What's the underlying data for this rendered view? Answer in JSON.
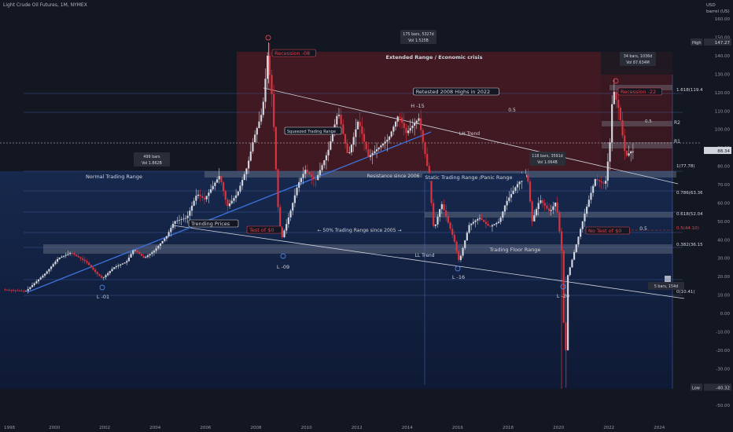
{
  "header": {
    "symbol": "Light Crude Oil Futures, 1M, NYMEX"
  },
  "currency": {
    "code": "USD",
    "unit": "barrel (US)"
  },
  "chart_data": {
    "type": "candlestick",
    "title": "Light Crude Oil Futures, 1M, NYMEX",
    "x_range": [
      1998.0,
      2025.0
    ],
    "y_range": [
      -50,
      160
    ],
    "log_scale": false,
    "grid": false,
    "x_ticks": [
      "1998",
      "2000",
      "2002",
      "2004",
      "2006",
      "2008",
      "2010",
      "2012",
      "2014",
      "2016",
      "2018",
      "2020",
      "2022",
      "2024"
    ],
    "y_ticks": [
      "160.00",
      "150.00",
      "140.00",
      "130.00",
      "120.00",
      "110.00",
      "100.00",
      "90.00",
      "80.00",
      "70.00",
      "60.00",
      "50.00",
      "40.00",
      "30.00",
      "20.00",
      "10.00",
      "0.00",
      "-10.00",
      "-20.00",
      "-30.00",
      "-40.00",
      "-50.00"
    ],
    "price_path": [
      [
        1998.0,
        13
      ],
      [
        1998.9,
        12
      ],
      [
        1999.3,
        17
      ],
      [
        1999.7,
        22
      ],
      [
        2000.2,
        30
      ],
      [
        2000.7,
        33
      ],
      [
        2001.3,
        28
      ],
      [
        2001.7,
        22
      ],
      [
        2001.95,
        19
      ],
      [
        2002.4,
        25
      ],
      [
        2002.9,
        28
      ],
      [
        2003.2,
        35
      ],
      [
        2003.6,
        30
      ],
      [
        2004.0,
        34
      ],
      [
        2004.5,
        42
      ],
      [
        2004.8,
        50
      ],
      [
        2005.3,
        52
      ],
      [
        2005.7,
        65
      ],
      [
        2006.0,
        62
      ],
      [
        2006.6,
        75
      ],
      [
        2006.9,
        58
      ],
      [
        2007.3,
        65
      ],
      [
        2007.7,
        80
      ],
      [
        2007.95,
        95
      ],
      [
        2008.3,
        110
      ],
      [
        2008.5,
        140
      ],
      [
        2008.7,
        115
      ],
      [
        2008.9,
        60
      ],
      [
        2009.05,
        40
      ],
      [
        2009.4,
        55
      ],
      [
        2009.7,
        70
      ],
      [
        2010.0,
        78
      ],
      [
        2010.4,
        72
      ],
      [
        2010.9,
        88
      ],
      [
        2011.3,
        110
      ],
      [
        2011.7,
        85
      ],
      [
        2012.1,
        105
      ],
      [
        2012.5,
        85
      ],
      [
        2012.9,
        90
      ],
      [
        2013.3,
        95
      ],
      [
        2013.7,
        108
      ],
      [
        2014.0,
        98
      ],
      [
        2014.5,
        106
      ],
      [
        2014.9,
        75
      ],
      [
        2015.1,
        45
      ],
      [
        2015.4,
        60
      ],
      [
        2015.9,
        40
      ],
      [
        2016.1,
        28
      ],
      [
        2016.5,
        48
      ],
      [
        2016.9,
        52
      ],
      [
        2017.3,
        47
      ],
      [
        2017.7,
        50
      ],
      [
        2017.95,
        60
      ],
      [
        2018.4,
        70
      ],
      [
        2018.8,
        76
      ],
      [
        2019.0,
        50
      ],
      [
        2019.3,
        62
      ],
      [
        2019.7,
        55
      ],
      [
        2019.95,
        61
      ],
      [
        2020.2,
        30
      ],
      [
        2020.3,
        -40
      ],
      [
        2020.4,
        20
      ],
      [
        2020.8,
        40
      ],
      [
        2021.1,
        55
      ],
      [
        2021.5,
        73
      ],
      [
        2021.9,
        70
      ],
      [
        2022.1,
        95
      ],
      [
        2022.2,
        123
      ],
      [
        2022.45,
        110
      ],
      [
        2022.7,
        85
      ],
      [
        2022.9,
        88
      ]
    ],
    "key_levels": [
      {
        "label": "High",
        "value": 147.27
      },
      {
        "label": "Low",
        "value": -40.32
      },
      {
        "label": "Last",
        "value": 88.34
      }
    ],
    "fib_levels": [
      {
        "label": "1.618(119.41)",
        "value": 119.41
      },
      {
        "label": "0.5",
        "value": 103.4
      },
      {
        "label": "1(77.78)",
        "value": 77.78
      },
      {
        "label": "0.786(63.36)",
        "value": 63.36
      },
      {
        "label": "0.618(52.04)",
        "value": 52.04
      },
      {
        "label": "0.5(44.10)",
        "value": 44.1
      },
      {
        "label": "0.382(36.15)",
        "value": 36.15
      },
      {
        "label": "0(10.41)",
        "value": 10.41
      }
    ],
    "markers": [
      "R2",
      "R1"
    ],
    "stats_boxes": [
      {
        "line1": "175 bars, 5327d",
        "line2": "Vol 1.525B"
      },
      {
        "line1": "34 bars, 1036d",
        "line2": "Vol 87.634M"
      },
      {
        "line1": "499 bars",
        "line2": "Vol 1.862B"
      },
      {
        "line1": "118 bars, 3591d",
        "line2": "Vol 1.064B"
      },
      {
        "line1": "5 bars, 154d",
        "line2": ""
      }
    ],
    "annotations": {
      "extended_range": "Extended Range / Economic crisis",
      "retested": "Retested 2008 Highs in 2022",
      "recession08": "Recession -08",
      "recession22": "Recession -22",
      "h15": "H -15",
      "half_top": "0.5",
      "squeezed": "Squeezed Trading Range",
      "lh_trend": "LH Trend",
      "normal_range": "Normal Trading Range",
      "resistance": "Resistance since 2006",
      "static_range": "Static Trading Range /Panic Range",
      "trending": "Trending Prices",
      "test0": "Test of $0",
      "range50": "←  50% Trading Range since 2005  →",
      "no_test": "No Test of $0",
      "half_mid": "0.5",
      "ll_trend": "LL Trend",
      "floor": "Trading Floor Range",
      "l01": "L -01",
      "l09": "L -09",
      "l16": "L -16",
      "l20": "L -20"
    }
  }
}
